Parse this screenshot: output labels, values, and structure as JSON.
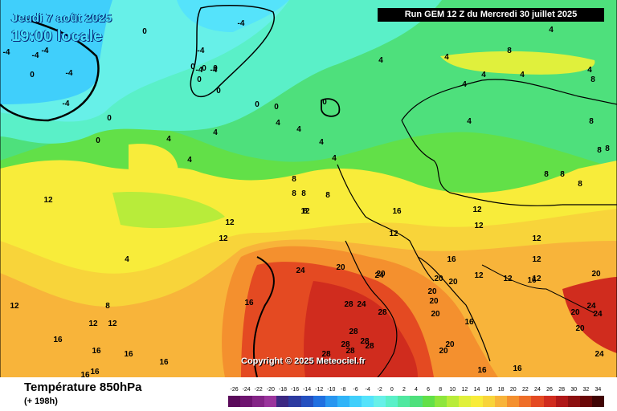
{
  "header": {
    "date": "Jeudi 7 août 2025",
    "time": "19:00 locale",
    "run": "Run GEM 12 Z du Mercredi 30 juillet 2025"
  },
  "copyright": "Copyright © 2025 Meteociel.fr",
  "footer": {
    "parameter": "Température 850hPa",
    "lead": "(+ 198h)"
  },
  "legend": {
    "ticks": [
      "-26",
      "-24",
      "-22",
      "-20",
      "-18",
      "-16",
      "-14",
      "-12",
      "-10",
      "-8",
      "-6",
      "-4",
      "-2",
      "0",
      "2",
      "4",
      "6",
      "8",
      "10",
      "12",
      "14",
      "16",
      "18",
      "20",
      "22",
      "24",
      "26",
      "28",
      "30",
      "32",
      "34"
    ],
    "colors": [
      "#5a0a5a",
      "#6e1470",
      "#842486",
      "#9a349c",
      "#3c2882",
      "#2c3aa0",
      "#2450c0",
      "#2070e0",
      "#2896f0",
      "#30b4f8",
      "#40cffb",
      "#55e3fb",
      "#67f0e8",
      "#5af0c8",
      "#4fe8a0",
      "#4ee07c",
      "#62e048",
      "#8ee63c",
      "#b8ec3a",
      "#e0f03c",
      "#f8ec3a",
      "#f8d43a",
      "#f8b43a",
      "#f4902e",
      "#ee6e28",
      "#e44a22",
      "#d02c1e",
      "#b01818",
      "#8c1010",
      "#6a0808",
      "#400404"
    ]
  },
  "isotherm_labels": [
    "-4",
    "-4",
    "-4",
    "-4",
    "-4",
    "-4",
    "-4",
    "-4",
    "-4",
    "0",
    "0",
    "0",
    "0",
    "0",
    "0",
    "0",
    "0",
    "0",
    "0",
    "0",
    "0",
    "4",
    "4",
    "4",
    "4",
    "4",
    "4",
    "4",
    "4",
    "4",
    "4",
    "4",
    "4",
    "4",
    "4",
    "4",
    "4",
    "8",
    "8",
    "8",
    "8",
    "8",
    "8",
    "8",
    "8",
    "8",
    "8",
    "8",
    "8",
    "8",
    "8",
    "12",
    "12",
    "12",
    "12",
    "12",
    "12",
    "12",
    "12",
    "12",
    "12",
    "12",
    "12",
    "12",
    "12",
    "12",
    "16",
    "16",
    "16",
    "16",
    "16",
    "16",
    "16",
    "16",
    "16",
    "16",
    "16",
    "16",
    "16",
    "20",
    "20",
    "20",
    "20",
    "20",
    "20",
    "20",
    "20",
    "20",
    "20",
    "20",
    "20",
    "24",
    "24",
    "24",
    "24",
    "24",
    "24",
    "28",
    "28",
    "28",
    "28",
    "28",
    "28",
    "28",
    "28"
  ]
}
